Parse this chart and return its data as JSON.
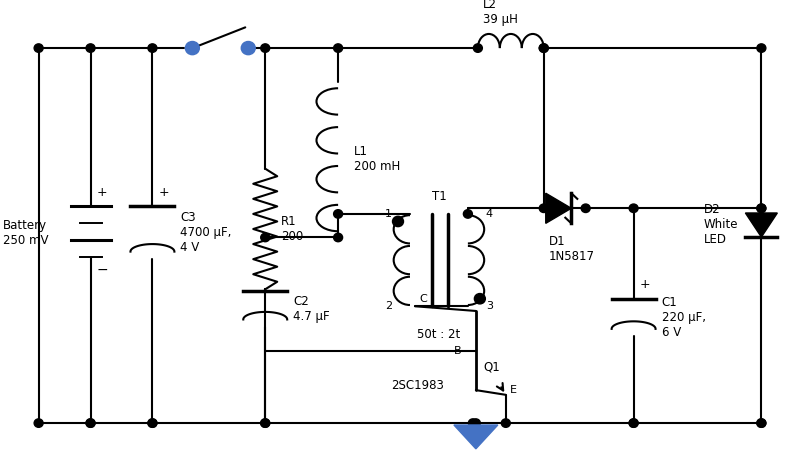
{
  "bg": "#ffffff",
  "lc": "#000000",
  "blue": "#4472C4",
  "lw": 1.5,
  "figsize": [
    7.99,
    4.53
  ],
  "dpi": 100,
  "labels": {
    "battery": "Battery\n250 mV",
    "C3": "C3\n4700 μF,\n4 V",
    "R1": "R1\n200",
    "L1": "L1\n200 mH",
    "C2": "C2\n4.7 μF",
    "L2": "L2\n39 μH",
    "D1": "D1\n1N5817",
    "C1": "C1\n220 μF,\n6 V",
    "D2": "D2\nWhite\nLED",
    "T1": "T1",
    "T1_ratio": "50t : 2t",
    "Q1": "Q1",
    "Q1_part": "2SC1983",
    "pin1": "1",
    "pin2": "2",
    "pin3": "3",
    "pin4": "4",
    "B": "B",
    "C": "C",
    "E": "E",
    "plus": "+",
    "minus": "−"
  }
}
